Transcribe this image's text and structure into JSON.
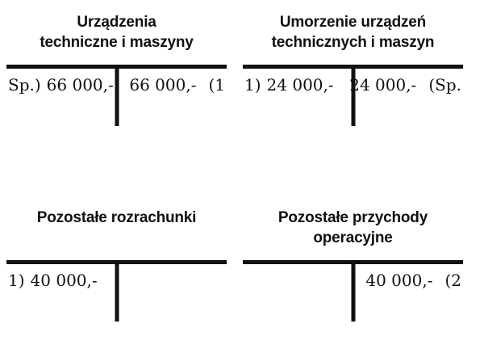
{
  "page": {
    "background_color": "#ffffff",
    "ink_color": "#111111",
    "kind": "t-account ledger diagram"
  },
  "accounts": [
    {
      "id": "urzadzenia-techniczne-i-maszyny",
      "title_lines": [
        "Urządzenia",
        "techniczne i maszyny"
      ],
      "debit": {
        "ref": "Sp.)",
        "amount": "66 000,-"
      },
      "credit": {
        "amount": "66 000,-",
        "ref": "(1"
      }
    },
    {
      "id": "umorzenie-urzadzen-technicznych-i-maszyn",
      "title_lines": [
        "Umorzenie urządzeń",
        "technicznych i maszyn"
      ],
      "debit": {
        "ref": "1)",
        "amount": "24 000,-"
      },
      "credit": {
        "amount": "24 000,-",
        "ref": "(Sp."
      }
    },
    {
      "id": "pozostale-rozrachunki",
      "title_lines": [
        "Pozostałe rozrachunki"
      ],
      "debit": {
        "ref": "1)",
        "amount": "40 000,-"
      },
      "credit": {
        "amount": "",
        "ref": ""
      }
    },
    {
      "id": "pozostale-przychody-operacyjne",
      "title_lines": [
        "Pozostałe przychody",
        "operacyjne"
      ],
      "debit": {
        "ref": "",
        "amount": ""
      },
      "credit": {
        "amount": "40 000,-",
        "ref": "(2"
      }
    }
  ]
}
